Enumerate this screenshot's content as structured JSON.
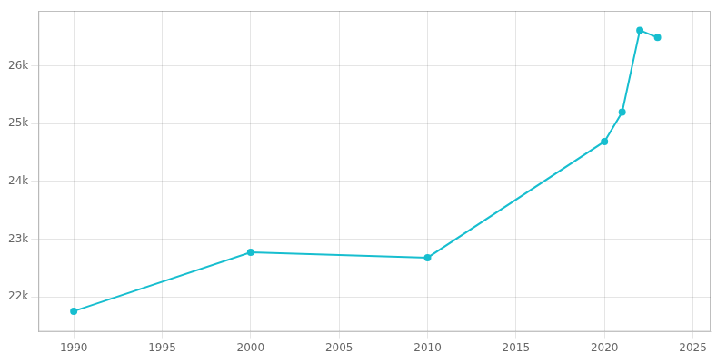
{
  "chart_data": {
    "type": "line",
    "x": [
      1990,
      2000,
      2010,
      2020,
      2021,
      2022,
      2023
    ],
    "values": [
      21756,
      22773,
      22682,
      24691,
      25199,
      26614,
      26490
    ],
    "color": "#17becf",
    "marker": "circle",
    "xlim": [
      1988,
      2026
    ],
    "xticks": [
      1990,
      1995,
      2000,
      2005,
      2010,
      2015,
      2020,
      2025
    ],
    "ylim": [
      21400,
      26950
    ],
    "yticks": [
      {
        "value": 22000,
        "label": "22k"
      },
      {
        "value": 23000,
        "label": "23k"
      },
      {
        "value": 24000,
        "label": "24k"
      },
      {
        "value": 25000,
        "label": "25k"
      },
      {
        "value": 26000,
        "label": "26k"
      }
    ],
    "grid": true
  }
}
